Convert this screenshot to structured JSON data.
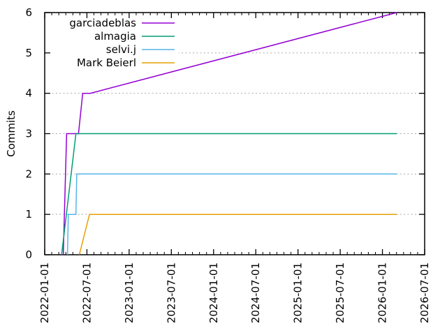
{
  "chart_data": {
    "type": "line",
    "title": "",
    "xlabel": "",
    "ylabel": "Commits",
    "x_axis": {
      "min": 2022.0,
      "max": 2026.5,
      "major_ticks": [
        2022.0,
        2022.5,
        2023.0,
        2023.5,
        2024.0,
        2024.5,
        2025.0,
        2025.5,
        2026.0,
        2026.5
      ],
      "major_tick_labels": [
        "2022-01-01",
        "2022-07-01",
        "2023-01-01",
        "2023-07-01",
        "2024-01-01",
        "2024-07-01",
        "2025-01-01",
        "2025-07-01",
        "2026-01-01",
        "2026-07-01"
      ],
      "minor_ticks": "monthly",
      "tick_label_rotation": -90
    },
    "y_axis": {
      "min": 0,
      "max": 6,
      "major_ticks": [
        0,
        1,
        2,
        3,
        4,
        5,
        6
      ],
      "tick_labels": [
        "0",
        "1",
        "2",
        "3",
        "4",
        "5",
        "6"
      ],
      "label": "Commits"
    },
    "grid": {
      "horizontal": true,
      "vertical": false,
      "style": "dotted",
      "color": "#a8a8a8"
    },
    "legend": {
      "position": "top-left-inside",
      "entries": [
        "garciadeblas",
        "almagia",
        "selvi.j",
        "Mark Beierl"
      ]
    },
    "series": [
      {
        "name": "garciadeblas",
        "color": "#9400d3",
        "points": [
          [
            2022.22,
            0
          ],
          [
            2022.26,
            3
          ],
          [
            2022.4,
            3
          ],
          [
            2022.45,
            4
          ],
          [
            2022.54,
            4
          ],
          [
            2026.17,
            6
          ]
        ]
      },
      {
        "name": "almagia",
        "color": "#009e73",
        "points": [
          [
            2022.2,
            0
          ],
          [
            2022.37,
            3
          ],
          [
            2026.17,
            3
          ]
        ]
      },
      {
        "name": "selvi.j",
        "color": "#56b4e9",
        "points": [
          [
            2022.27,
            0
          ],
          [
            2022.28,
            1
          ],
          [
            2022.37,
            1
          ],
          [
            2022.38,
            2
          ],
          [
            2026.17,
            2
          ]
        ]
      },
      {
        "name": "Mark Beierl",
        "color": "#e69f00",
        "points": [
          [
            2022.41,
            0
          ],
          [
            2022.53,
            1
          ],
          [
            2026.17,
            1
          ]
        ]
      }
    ]
  },
  "colors": {
    "background": "#ffffff",
    "axis": "#000000",
    "text": "#000000",
    "grid": "#a8a8a8"
  }
}
